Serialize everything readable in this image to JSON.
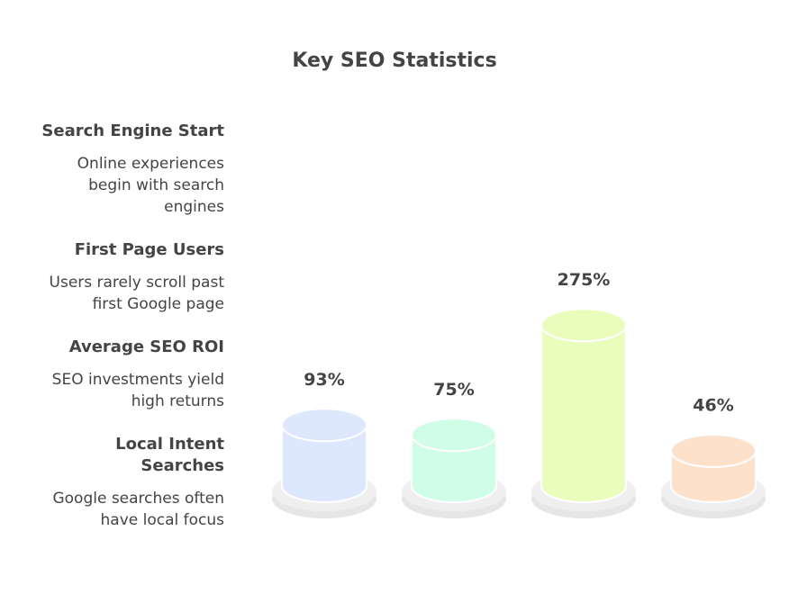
{
  "chart_data": {
    "type": "bar",
    "title": "Key SEO Statistics",
    "categories": [
      "Search Engine Start",
      "First Page Users",
      "Average SEO ROI",
      "Local Intent\nSearches"
    ],
    "descriptions": [
      "Online experiences\nbegin with search\nengines",
      "Users rarely scroll past\nfirst Google page",
      "SEO investments yield\nhigh returns",
      "Google searches often\nhave local focus"
    ],
    "values": [
      93,
      75,
      275,
      46
    ],
    "value_labels": [
      "93%",
      "75%",
      "275%",
      "46%"
    ],
    "colors": [
      "#dde7fd",
      "#cffde6",
      "#e9fdbd",
      "#fde1cb"
    ]
  }
}
